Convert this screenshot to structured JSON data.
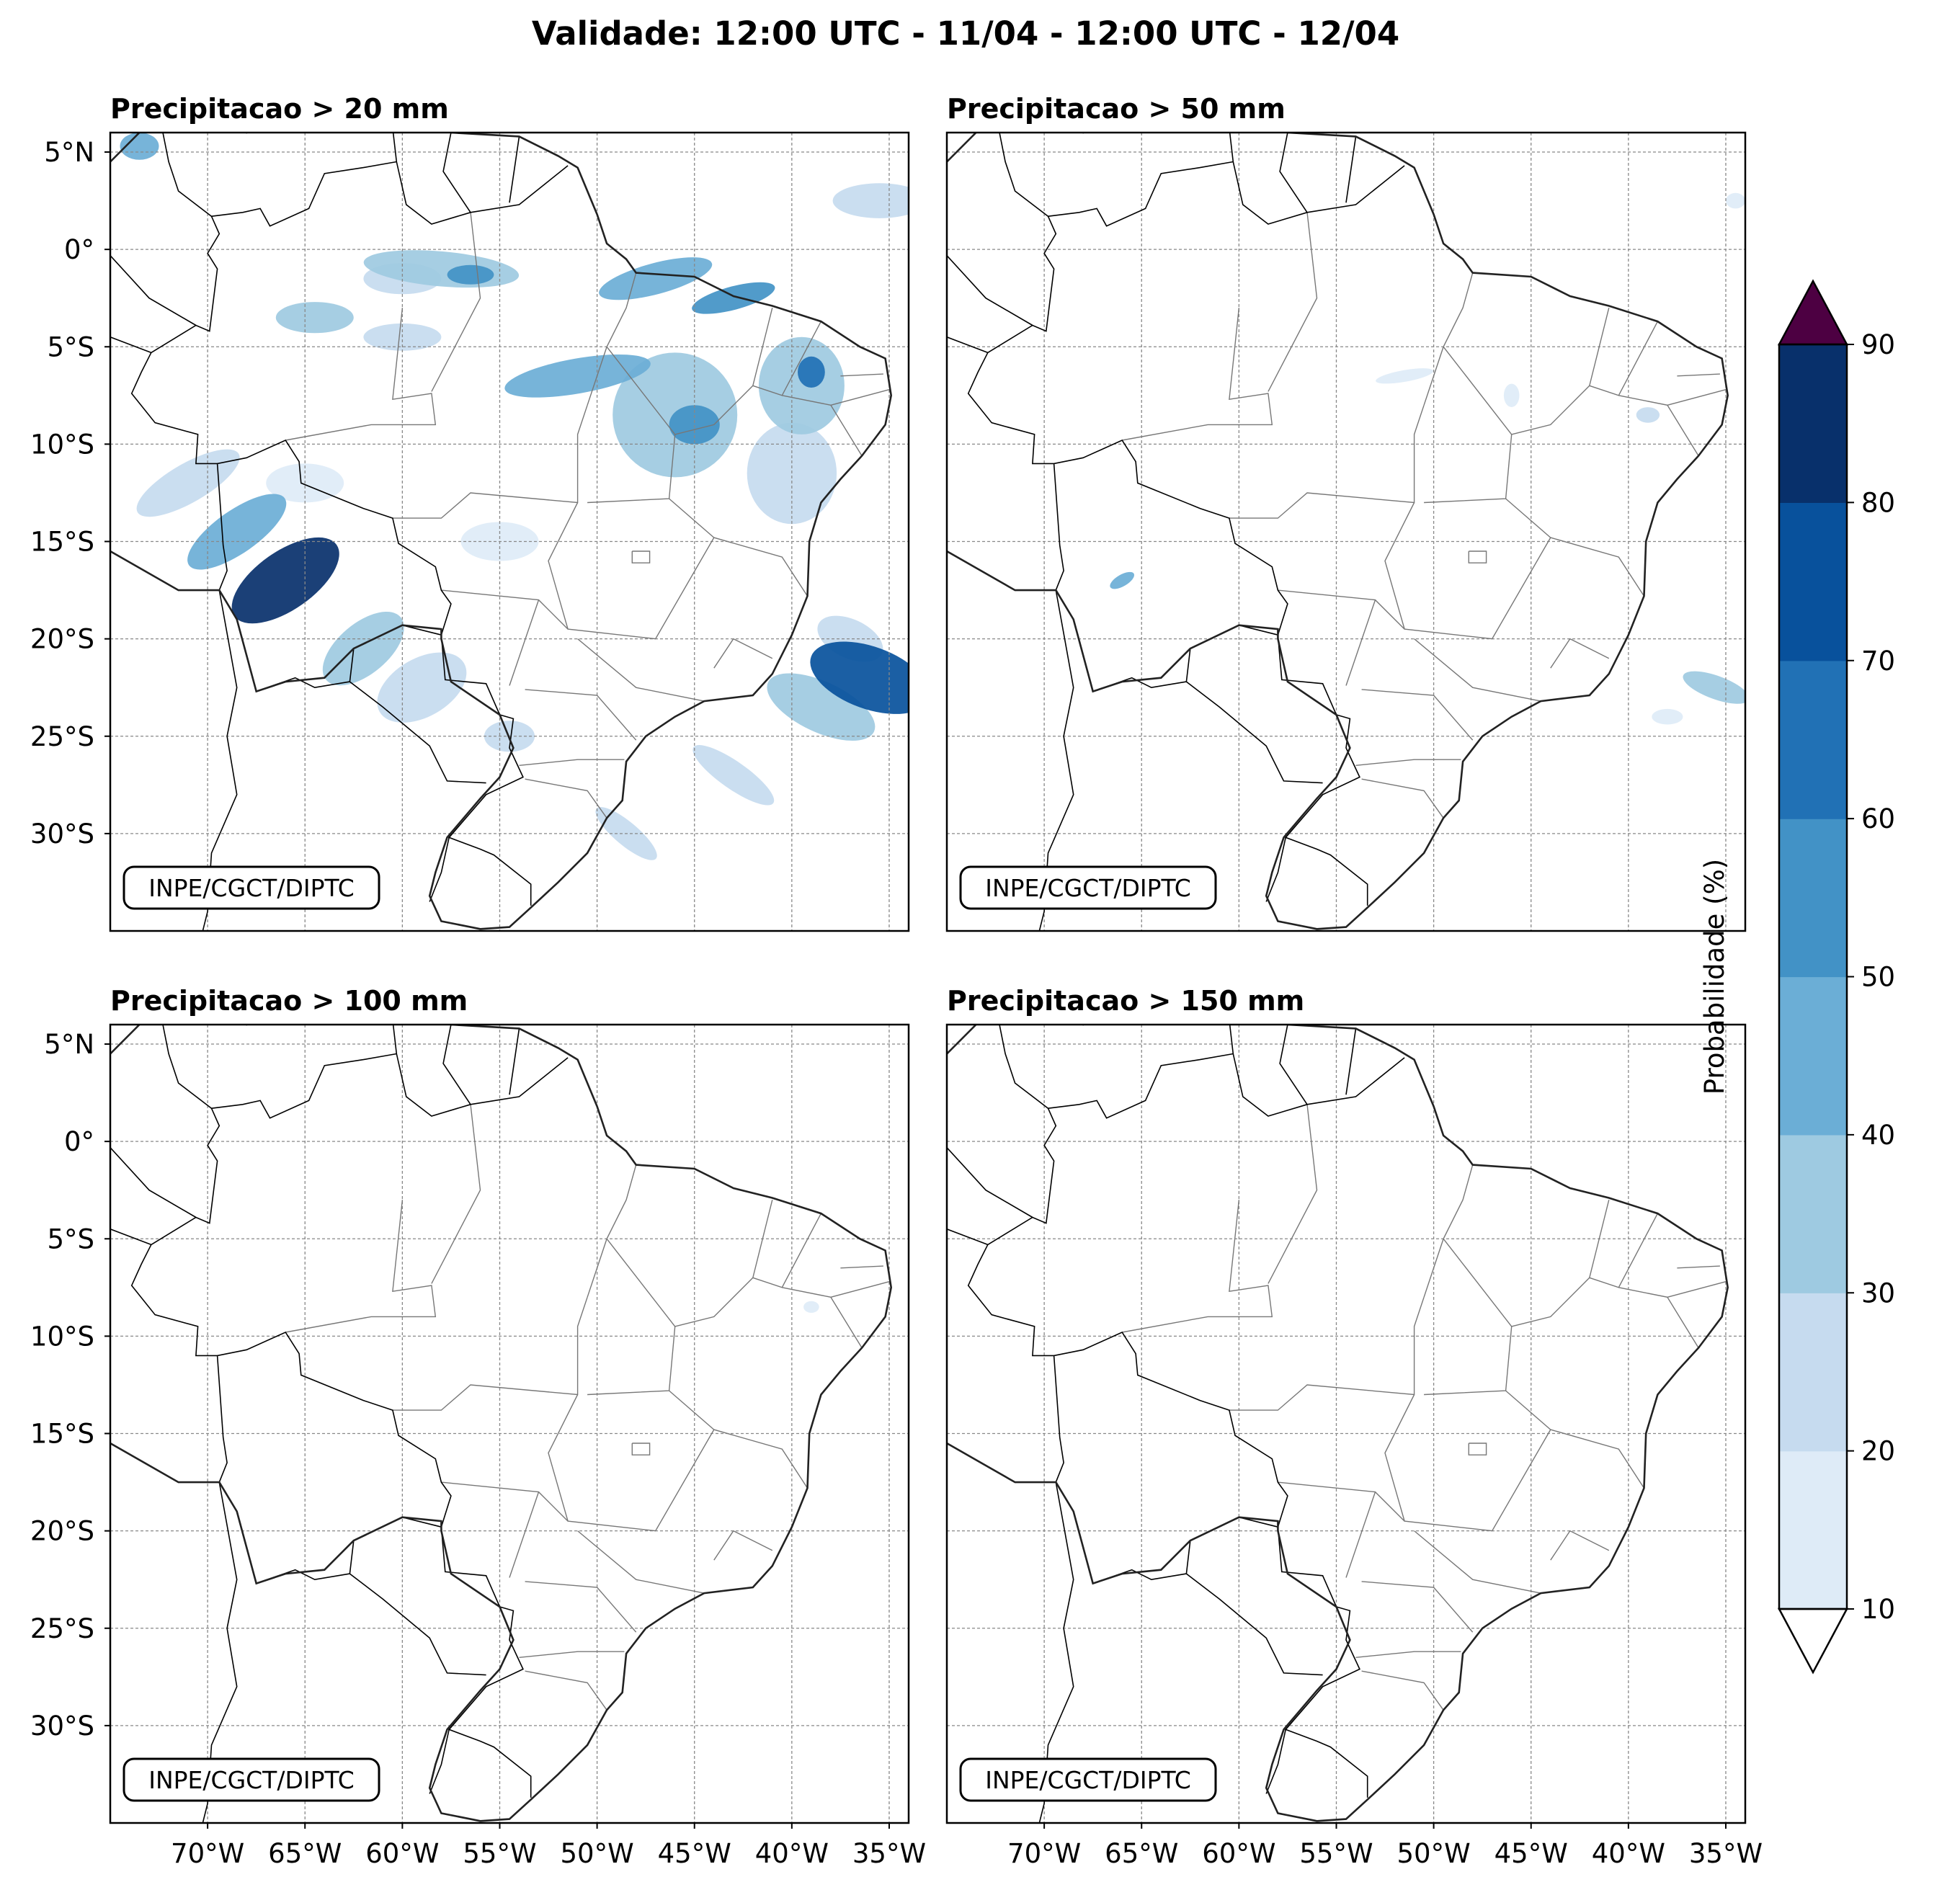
{
  "suptitle": "Validade: 12:00 UTC - 11/04 - 12:00 UTC - 12/04",
  "watermark": "INPE/CGCT/DIPTC",
  "lat_ticks": [
    "5°N",
    "0°",
    "5°S",
    "10°S",
    "15°S",
    "20°S",
    "25°S",
    "30°S"
  ],
  "lon_ticks": [
    "70°W",
    "65°W",
    "60°W",
    "55°W",
    "50°W",
    "45°W",
    "40°W",
    "35°W"
  ],
  "panels": [
    {
      "title": "Precipitacao > 20 mm"
    },
    {
      "title": "Precipitacao > 50 mm"
    },
    {
      "title": "Precipitacao > 100 mm"
    },
    {
      "title": "Precipitacao > 150 mm"
    }
  ],
  "colorbar": {
    "label": "Probabilidade (%)",
    "ticks": [
      "10",
      "20",
      "30",
      "40",
      "50",
      "60",
      "70",
      "80",
      "90"
    ],
    "colors": [
      "#deebf7",
      "#c6dbef",
      "#9ecae1",
      "#6baed6",
      "#4292c6",
      "#2171b5",
      "#08519c",
      "#08306b"
    ],
    "over_color": "#4d0042",
    "under_color": "#ffffff"
  },
  "map_extent": {
    "lon_min": -75,
    "lon_max": -34,
    "lat_min": -35,
    "lat_max": 6
  },
  "chart_data": {
    "type": "heatmap",
    "unit": "%",
    "levels": [
      10,
      20,
      30,
      40,
      50,
      60,
      70,
      80,
      90
    ],
    "panels": [
      {
        "threshold_mm": 20,
        "regions": [
          {
            "lon": -66,
            "lat": -17,
            "rlon": 3.2,
            "rlat": 1.5,
            "rot": 35,
            "prob": 80
          },
          {
            "lon": -68.5,
            "lat": -14.5,
            "rlon": 3.0,
            "rlat": 1.1,
            "rot": 35,
            "prob": 40
          },
          {
            "lon": -71,
            "lat": -12,
            "rlon": 3.0,
            "rlat": 1.0,
            "rot": 30,
            "prob": 20
          },
          {
            "lon": -62,
            "lat": -20.5,
            "rlon": 2.5,
            "rlat": 1.3,
            "rot": 40,
            "prob": 30
          },
          {
            "lon": -59,
            "lat": -22.5,
            "rlon": 2.5,
            "rlat": 1.5,
            "rot": 30,
            "prob": 20
          },
          {
            "lon": -36,
            "lat": -22,
            "rlon": 3.2,
            "rlat": 1.6,
            "rot": -20,
            "prob": 70
          },
          {
            "lon": -38.5,
            "lat": -23.5,
            "rlon": 3.0,
            "rlat": 1.3,
            "rot": -25,
            "prob": 30
          },
          {
            "lon": -37,
            "lat": -20,
            "rlon": 1.8,
            "rlat": 1.0,
            "rot": -25,
            "prob": 20
          },
          {
            "lon": -51,
            "lat": -6.5,
            "rlon": 3.8,
            "rlat": 0.9,
            "rot": 10,
            "prob": 40
          },
          {
            "lon": -58,
            "lat": -1,
            "rlon": 4.0,
            "rlat": 0.9,
            "rot": -5,
            "prob": 30
          },
          {
            "lon": -56.5,
            "lat": -1.3,
            "rlon": 1.2,
            "rlat": 0.5,
            "rot": 0,
            "prob": 50
          },
          {
            "lon": -47,
            "lat": -1.5,
            "rlon": 3.0,
            "rlat": 0.8,
            "rot": 15,
            "prob": 40
          },
          {
            "lon": -43,
            "lat": -2.5,
            "rlon": 2.2,
            "rlat": 0.6,
            "rot": 15,
            "prob": 50
          },
          {
            "lon": -46,
            "lat": -8.5,
            "rlon": 3.2,
            "rlat": 3.2,
            "rot": 0,
            "prob": 30
          },
          {
            "lon": -45,
            "lat": -9,
            "rlon": 1.3,
            "rlat": 1.0,
            "rot": 0,
            "prob": 50
          },
          {
            "lon": -39.5,
            "lat": -7,
            "rlon": 2.2,
            "rlat": 2.5,
            "rot": 0,
            "prob": 30
          },
          {
            "lon": -39,
            "lat": -6.3,
            "rlon": 0.7,
            "rlat": 0.8,
            "rot": 0,
            "prob": 60
          },
          {
            "lon": -40,
            "lat": -11.5,
            "rlon": 2.3,
            "rlat": 2.6,
            "rot": 0,
            "prob": 20
          },
          {
            "lon": -64.5,
            "lat": -3.5,
            "rlon": 2.0,
            "rlat": 0.8,
            "rot": 0,
            "prob": 30
          },
          {
            "lon": -60,
            "lat": -4.5,
            "rlon": 2.0,
            "rlat": 0.7,
            "rot": 0,
            "prob": 20
          },
          {
            "lon": -60,
            "lat": -1.5,
            "rlon": 2.0,
            "rlat": 0.8,
            "rot": 0,
            "prob": 20
          },
          {
            "lon": -73.5,
            "lat": 5.3,
            "rlon": 1.0,
            "rlat": 0.7,
            "rot": 0,
            "prob": 40
          },
          {
            "lon": -35.5,
            "lat": 2.5,
            "rlon": 2.4,
            "rlat": 0.9,
            "rot": 0,
            "prob": 20
          },
          {
            "lon": -43,
            "lat": -27,
            "rlon": 2.5,
            "rlat": 0.7,
            "rot": -35,
            "prob": 20
          },
          {
            "lon": -48.5,
            "lat": -30,
            "rlon": 2.0,
            "rlat": 0.6,
            "rot": -40,
            "prob": 20
          },
          {
            "lon": -54.5,
            "lat": -25,
            "rlon": 1.3,
            "rlat": 0.8,
            "rot": 0,
            "prob": 20
          },
          {
            "lon": -65,
            "lat": -12,
            "rlon": 2.0,
            "rlat": 1.0,
            "rot": 0,
            "prob": 10
          },
          {
            "lon": -55,
            "lat": -15,
            "rlon": 2.0,
            "rlat": 1.0,
            "rot": 0,
            "prob": 10
          }
        ]
      },
      {
        "threshold_mm": 50,
        "regions": [
          {
            "lon": -35.5,
            "lat": -22.5,
            "rlon": 1.8,
            "rlat": 0.6,
            "rot": -20,
            "prob": 30
          },
          {
            "lon": -38,
            "lat": -24,
            "rlon": 0.8,
            "rlat": 0.4,
            "rot": 0,
            "prob": 10
          },
          {
            "lon": -66,
            "lat": -17,
            "rlon": 0.7,
            "rlat": 0.3,
            "rot": 30,
            "prob": 40
          },
          {
            "lon": -51.5,
            "lat": -6.5,
            "rlon": 1.5,
            "rlat": 0.3,
            "rot": 10,
            "prob": 10
          },
          {
            "lon": -39,
            "lat": -8.5,
            "rlon": 0.6,
            "rlat": 0.4,
            "rot": 0,
            "prob": 20
          },
          {
            "lon": -46,
            "lat": -7.5,
            "rlon": 0.4,
            "rlat": 0.6,
            "rot": 0,
            "prob": 10
          },
          {
            "lon": -34.5,
            "lat": 2.5,
            "rlon": 0.5,
            "rlat": 0.4,
            "rot": 0,
            "prob": 10
          }
        ]
      },
      {
        "threshold_mm": 100,
        "regions": [
          {
            "lon": -39,
            "lat": -8.5,
            "rlon": 0.4,
            "rlat": 0.3,
            "rot": 0,
            "prob": 10
          }
        ]
      },
      {
        "threshold_mm": 150,
        "regions": []
      }
    ]
  }
}
